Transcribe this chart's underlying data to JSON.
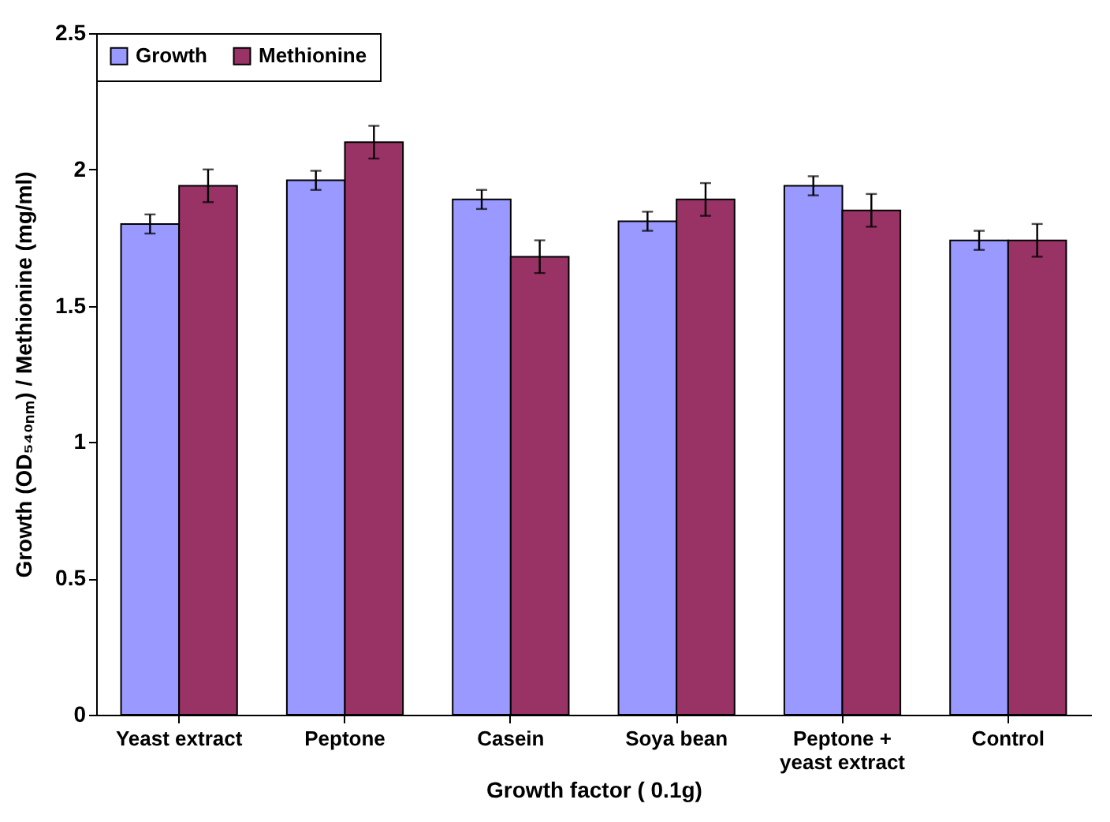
{
  "chart_data": {
    "type": "bar",
    "xlabel": "Growth factor ( 0.1g)",
    "ylabel": "Growth (OD₅₄₀ₙₘ) / Methionine (mg/ml)",
    "categories": [
      "Yeast extract",
      "Peptone",
      "Casein",
      "Soya bean",
      "Peptone + yeast extract",
      "Control"
    ],
    "series": [
      {
        "name": "Growth",
        "color": "#9999ff",
        "values": [
          1.8,
          1.96,
          1.89,
          1.81,
          1.94,
          1.74
        ],
        "errors": [
          0.035,
          0.035,
          0.035,
          0.035,
          0.035,
          0.035
        ]
      },
      {
        "name": "Methionine",
        "color": "#993366",
        "values": [
          1.94,
          2.1,
          1.68,
          1.89,
          1.85,
          1.74
        ],
        "errors": [
          0.06,
          0.06,
          0.06,
          0.06,
          0.06,
          0.06
        ]
      }
    ],
    "ylim": [
      0,
      2.5
    ],
    "yticks": [
      0,
      0.5,
      1,
      1.5,
      2,
      2.5
    ],
    "grid": false,
    "legend": "top left"
  }
}
